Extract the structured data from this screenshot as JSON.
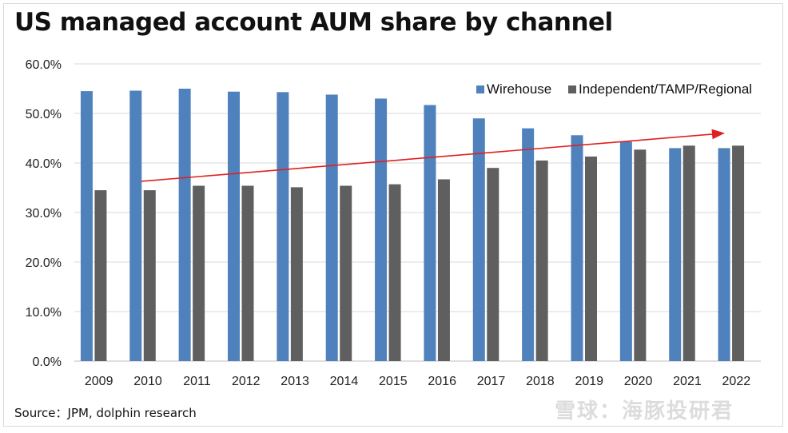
{
  "title": "US managed account AUM share by channel",
  "source": "Source：JPM, dolphin research",
  "watermark": "雪球：海豚投研君",
  "colors": {
    "wirehouse": "#4f81bd",
    "independent": "#5f5f5f",
    "trend_arrow": "#e02020",
    "grid": "#d9d9d9"
  },
  "chart_data": {
    "type": "bar",
    "categories": [
      "2009",
      "2010",
      "2011",
      "2012",
      "2013",
      "2014",
      "2015",
      "2016",
      "2017",
      "2018",
      "2019",
      "2020",
      "2021",
      "2022"
    ],
    "series": [
      {
        "name": "Wirehouse",
        "values": [
          54.5,
          54.6,
          55.0,
          54.4,
          54.3,
          53.8,
          53.0,
          51.7,
          49.0,
          47.0,
          45.6,
          44.3,
          43.0,
          43.0
        ]
      },
      {
        "name": "Independent/TAMP/Regional",
        "values": [
          34.5,
          34.5,
          35.4,
          35.4,
          35.1,
          35.4,
          35.7,
          36.7,
          39.0,
          40.5,
          41.3,
          42.7,
          43.5,
          43.5
        ]
      }
    ],
    "ylim": [
      0,
      60
    ],
    "yticks": [
      "0.0%",
      "10.0%",
      "20.0%",
      "30.0%",
      "40.0%",
      "50.0%",
      "60.0%"
    ],
    "grid": true,
    "legend": "top-right",
    "annotations": [
      {
        "type": "arrow",
        "from": {
          "category": "2010",
          "value": 36.3
        },
        "to": {
          "category": "2022",
          "value": 46.0
        }
      }
    ]
  }
}
